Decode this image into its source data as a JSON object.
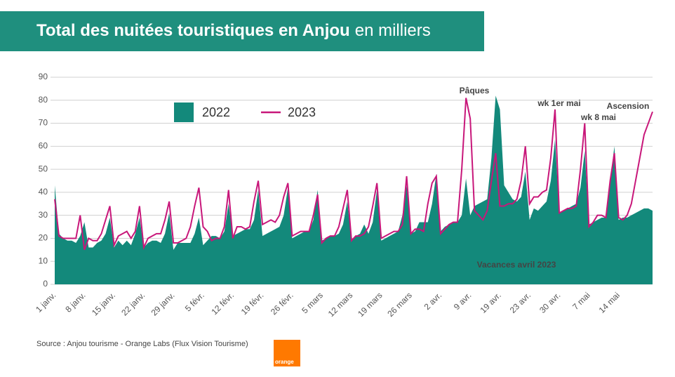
{
  "chart_data": {
    "type": "area-line",
    "title": "Total des nuitées touristiques en Anjou",
    "subtitle": "en milliers",
    "source": "Source : Anjou tourisme - Orange Labs (Flux Vision Tourisme)",
    "logo": "orange",
    "categories": [
      "1 janv.",
      null,
      null,
      null,
      null,
      null,
      null,
      "8 janv.",
      null,
      null,
      null,
      null,
      null,
      null,
      "15 janv.",
      null,
      null,
      null,
      null,
      null,
      null,
      "22 janv.",
      null,
      null,
      null,
      null,
      null,
      null,
      "29 janv.",
      null,
      null,
      null,
      null,
      null,
      null,
      "5 févr.",
      null,
      null,
      null,
      null,
      null,
      null,
      "12 févr.",
      null,
      null,
      null,
      null,
      null,
      null,
      "19 févr.",
      null,
      null,
      null,
      null,
      null,
      null,
      "26 févr.",
      null,
      null,
      null,
      null,
      null,
      null,
      "5 mars",
      null,
      null,
      null,
      null,
      null,
      null,
      "12 mars",
      null,
      null,
      null,
      null,
      null,
      null,
      "19 mars",
      null,
      null,
      null,
      null,
      null,
      null,
      "26 mars",
      null,
      null,
      null,
      null,
      null,
      null,
      "2 avr.",
      null,
      null,
      null,
      null,
      null,
      null,
      "9 avr.",
      null,
      null,
      null,
      null,
      null,
      null,
      "19 avr.",
      null,
      null,
      null,
      null,
      null,
      null,
      "23 avr.",
      null,
      null,
      null,
      null,
      null,
      null,
      "30 avr.",
      null,
      null,
      null,
      null,
      null,
      null,
      "7 mai",
      null,
      null,
      null,
      null,
      null,
      null,
      "14 mai",
      null,
      null,
      null,
      null,
      null,
      null,
      null,
      null
    ],
    "series": [
      {
        "name": "2022",
        "kind": "area",
        "color": "#13897b",
        "values": [
          43,
          22,
          20,
          19,
          19,
          18,
          21,
          27,
          16,
          16,
          18,
          19,
          22,
          29,
          16,
          19,
          17,
          19,
          17,
          22,
          29,
          16,
          18,
          19,
          19,
          18,
          22,
          31,
          15,
          18,
          18,
          18,
          18,
          22,
          29,
          17,
          19,
          21,
          21,
          20,
          23,
          35,
          21,
          22,
          23,
          24,
          24,
          28,
          41,
          21,
          22,
          23,
          24,
          25,
          30,
          42,
          20,
          21,
          22,
          23,
          23,
          28,
          41,
          19,
          20,
          21,
          21,
          22,
          26,
          36,
          19,
          21,
          22,
          26,
          22,
          27,
          41,
          19,
          20,
          21,
          22,
          23,
          30,
          43,
          22,
          23,
          27,
          27,
          27,
          35,
          48,
          23,
          25,
          26,
          27,
          27,
          30,
          46,
          30,
          34,
          35,
          36,
          37,
          55,
          82,
          76,
          43,
          40,
          37,
          36,
          38,
          49,
          28,
          33,
          32,
          34,
          36,
          45,
          63,
          31,
          32,
          33,
          34,
          35,
          42,
          58,
          26,
          27,
          28,
          29,
          29,
          45,
          60,
          28,
          29,
          29,
          30,
          31,
          32,
          33,
          33,
          32
        ]
      },
      {
        "name": "2023",
        "kind": "line",
        "color": "#c8177a",
        "values": [
          37,
          21,
          20,
          20,
          20,
          20,
          30,
          15,
          20,
          19,
          19,
          22,
          28,
          34,
          17,
          21,
          22,
          23,
          20,
          23,
          34,
          16,
          20,
          21,
          22,
          22,
          28,
          36,
          18,
          18,
          19,
          20,
          25,
          34,
          42,
          25,
          23,
          19,
          20,
          20,
          25,
          41,
          20,
          25,
          25,
          24,
          25,
          36,
          45,
          26,
          27,
          28,
          27,
          30,
          38,
          44,
          21,
          22,
          23,
          23,
          23,
          30,
          39,
          18,
          20,
          21,
          21,
          25,
          33,
          41,
          19,
          21,
          21,
          22,
          25,
          34,
          44,
          20,
          21,
          22,
          23,
          23,
          26,
          47,
          22,
          24,
          24,
          23,
          35,
          44,
          47,
          22,
          24,
          26,
          27,
          27,
          50,
          81,
          72,
          32,
          30,
          28,
          32,
          45,
          57,
          34,
          34,
          35,
          35,
          37,
          45,
          60,
          35,
          38,
          38,
          40,
          41,
          55,
          76,
          31,
          32,
          33,
          33,
          34,
          50,
          70,
          25,
          27,
          30,
          30,
          29,
          45,
          57,
          29,
          28,
          30,
          35,
          45,
          55,
          65,
          70,
          75
        ]
      }
    ],
    "ylim": [
      0,
      90
    ],
    "yticks": [
      0,
      10,
      20,
      30,
      40,
      50,
      60,
      70,
      80,
      90
    ],
    "grid": true,
    "annotations": [
      "Pâques",
      "wk 1er mai",
      "wk 8 mai",
      "Ascension",
      "Vacances avril 2023"
    ]
  }
}
